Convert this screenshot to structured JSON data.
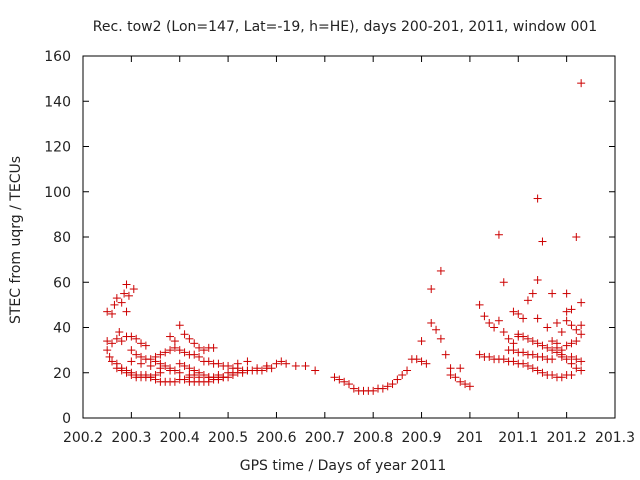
{
  "chart_data": {
    "type": "scatter",
    "title": "Rec. tow2 (Lon=147, Lat=-19, h=HE), days 200-201, 2011, window 001",
    "xlabel": "GPS time / Days of year 2011",
    "ylabel": "STEC from uqrg / TECUs",
    "xlim": [
      200.2,
      201.3
    ],
    "ylim": [
      0,
      160
    ],
    "xticks": [
      200.2,
      200.3,
      200.4,
      200.5,
      200.6,
      200.7,
      200.8,
      200.9,
      201,
      201.1,
      201.2,
      201.3
    ],
    "xtick_labels": [
      "200.2",
      "200.3",
      "200.4",
      "200.5",
      "200.6",
      "200.7",
      "200.8",
      "200.9",
      "201",
      "201.1",
      "201.2",
      "201.3"
    ],
    "yticks": [
      0,
      20,
      40,
      60,
      80,
      100,
      120,
      140,
      160
    ],
    "ytick_labels": [
      "0",
      "20",
      "40",
      "60",
      "80",
      "100",
      "120",
      "140",
      "160"
    ],
    "marker": "+",
    "color": "#cc0000",
    "grid": false,
    "series": [
      {
        "name": "STEC",
        "points": [
          [
            200.25,
            47
          ],
          [
            200.26,
            46
          ],
          [
            200.265,
            50
          ],
          [
            200.27,
            53
          ],
          [
            200.28,
            51
          ],
          [
            200.285,
            55
          ],
          [
            200.29,
            59
          ],
          [
            200.295,
            54
          ],
          [
            200.305,
            57
          ],
          [
            200.29,
            47
          ],
          [
            200.25,
            34
          ],
          [
            200.26,
            33
          ],
          [
            200.27,
            35
          ],
          [
            200.275,
            38
          ],
          [
            200.28,
            34
          ],
          [
            200.29,
            36
          ],
          [
            200.3,
            36
          ],
          [
            200.31,
            35
          ],
          [
            200.32,
            33
          ],
          [
            200.33,
            32
          ],
          [
            200.25,
            30
          ],
          [
            200.255,
            27
          ],
          [
            200.26,
            25
          ],
          [
            200.27,
            24
          ],
          [
            200.28,
            22
          ],
          [
            200.29,
            21
          ],
          [
            200.3,
            20
          ],
          [
            200.31,
            19
          ],
          [
            200.32,
            19
          ],
          [
            200.33,
            19
          ],
          [
            200.34,
            18
          ],
          [
            200.35,
            17
          ],
          [
            200.36,
            16
          ],
          [
            200.37,
            16
          ],
          [
            200.38,
            16
          ],
          [
            200.39,
            16
          ],
          [
            200.4,
            17
          ],
          [
            200.41,
            17
          ],
          [
            200.42,
            18
          ],
          [
            200.43,
            19
          ],
          [
            200.27,
            22
          ],
          [
            200.28,
            21
          ],
          [
            200.29,
            20
          ],
          [
            200.3,
            19
          ],
          [
            200.31,
            18
          ],
          [
            200.32,
            18
          ],
          [
            200.33,
            18
          ],
          [
            200.34,
            18
          ],
          [
            200.35,
            19
          ],
          [
            200.36,
            20
          ],
          [
            200.3,
            30
          ],
          [
            200.31,
            28
          ],
          [
            200.32,
            27
          ],
          [
            200.33,
            26
          ],
          [
            200.34,
            26
          ],
          [
            200.35,
            25
          ],
          [
            200.36,
            24
          ],
          [
            200.37,
            23
          ],
          [
            200.38,
            22
          ],
          [
            200.39,
            21
          ],
          [
            200.3,
            25
          ],
          [
            200.32,
            24
          ],
          [
            200.34,
            23
          ],
          [
            200.36,
            22
          ],
          [
            200.38,
            21
          ],
          [
            200.4,
            20
          ],
          [
            200.42,
            19
          ],
          [
            200.44,
            18
          ],
          [
            200.46,
            18
          ],
          [
            200.48,
            19
          ],
          [
            200.35,
            27
          ],
          [
            200.36,
            28
          ],
          [
            200.37,
            29
          ],
          [
            200.38,
            30
          ],
          [
            200.39,
            31
          ],
          [
            200.4,
            30
          ],
          [
            200.41,
            29
          ],
          [
            200.42,
            28
          ],
          [
            200.43,
            28
          ],
          [
            200.44,
            27
          ],
          [
            200.38,
            36
          ],
          [
            200.39,
            34
          ],
          [
            200.4,
            41
          ],
          [
            200.41,
            37
          ],
          [
            200.42,
            35
          ],
          [
            200.43,
            33
          ],
          [
            200.44,
            31
          ],
          [
            200.45,
            30
          ],
          [
            200.46,
            31
          ],
          [
            200.47,
            31
          ],
          [
            200.4,
            24
          ],
          [
            200.41,
            23
          ],
          [
            200.42,
            22
          ],
          [
            200.43,
            21
          ],
          [
            200.44,
            20
          ],
          [
            200.45,
            19
          ],
          [
            200.46,
            18
          ],
          [
            200.47,
            18
          ],
          [
            200.48,
            18
          ],
          [
            200.49,
            18
          ],
          [
            200.42,
            16
          ],
          [
            200.43,
            16
          ],
          [
            200.44,
            16
          ],
          [
            200.45,
            16
          ],
          [
            200.46,
            16
          ],
          [
            200.47,
            17
          ],
          [
            200.48,
            17
          ],
          [
            200.49,
            18
          ],
          [
            200.5,
            18
          ],
          [
            200.51,
            19
          ],
          [
            200.45,
            25
          ],
          [
            200.46,
            25
          ],
          [
            200.47,
            24
          ],
          [
            200.48,
            24
          ],
          [
            200.49,
            23
          ],
          [
            200.5,
            23
          ],
          [
            200.51,
            22
          ],
          [
            200.52,
            22
          ],
          [
            200.53,
            21
          ],
          [
            200.54,
            21
          ],
          [
            200.5,
            20
          ],
          [
            200.51,
            20
          ],
          [
            200.52,
            20
          ],
          [
            200.53,
            20
          ],
          [
            200.54,
            21
          ],
          [
            200.55,
            21
          ],
          [
            200.56,
            21
          ],
          [
            200.57,
            21
          ],
          [
            200.58,
            22
          ],
          [
            200.59,
            22
          ],
          [
            200.52,
            24
          ],
          [
            200.54,
            25
          ],
          [
            200.56,
            22
          ],
          [
            200.58,
            23
          ],
          [
            200.6,
            24
          ],
          [
            200.61,
            25
          ],
          [
            200.62,
            24
          ],
          [
            200.64,
            23
          ],
          [
            200.66,
            23
          ],
          [
            200.68,
            21
          ],
          [
            200.72,
            18
          ],
          [
            200.73,
            17
          ],
          [
            200.74,
            16
          ],
          [
            200.75,
            15
          ],
          [
            200.76,
            13
          ],
          [
            200.77,
            12
          ],
          [
            200.78,
            12
          ],
          [
            200.79,
            12
          ],
          [
            200.8,
            12
          ],
          [
            200.81,
            13
          ],
          [
            200.82,
            13
          ],
          [
            200.83,
            14
          ],
          [
            200.84,
            15
          ],
          [
            200.85,
            17
          ],
          [
            200.86,
            19
          ],
          [
            200.87,
            21
          ],
          [
            200.88,
            26
          ],
          [
            200.89,
            26
          ],
          [
            200.9,
            25
          ],
          [
            200.91,
            24
          ],
          [
            200.9,
            34
          ],
          [
            200.92,
            42
          ],
          [
            200.93,
            39
          ],
          [
            200.94,
            35
          ],
          [
            200.95,
            28
          ],
          [
            200.96,
            22
          ],
          [
            200.97,
            18
          ],
          [
            200.98,
            16
          ],
          [
            200.99,
            15
          ],
          [
            201.0,
            14
          ],
          [
            200.92,
            57
          ],
          [
            200.94,
            65
          ],
          [
            200.98,
            22
          ],
          [
            200.96,
            19
          ],
          [
            201.02,
            50
          ],
          [
            201.03,
            45
          ],
          [
            201.04,
            42
          ],
          [
            201.05,
            40
          ],
          [
            201.06,
            43
          ],
          [
            201.07,
            38
          ],
          [
            201.08,
            35
          ],
          [
            201.09,
            33
          ],
          [
            201.1,
            36
          ],
          [
            201.11,
            44
          ],
          [
            201.06,
            81
          ],
          [
            201.07,
            60
          ],
          [
            201.09,
            47
          ],
          [
            201.1,
            46
          ],
          [
            201.12,
            52
          ],
          [
            201.13,
            55
          ],
          [
            201.14,
            61
          ],
          [
            201.14,
            97
          ],
          [
            201.15,
            78
          ],
          [
            201.17,
            55
          ],
          [
            201.02,
            28
          ],
          [
            201.03,
            27
          ],
          [
            201.04,
            27
          ],
          [
            201.05,
            26
          ],
          [
            201.06,
            26
          ],
          [
            201.07,
            26
          ],
          [
            201.08,
            25
          ],
          [
            201.09,
            25
          ],
          [
            201.1,
            24
          ],
          [
            201.11,
            24
          ],
          [
            201.12,
            23
          ],
          [
            201.13,
            22
          ],
          [
            201.14,
            21
          ],
          [
            201.15,
            20
          ],
          [
            201.16,
            19
          ],
          [
            201.17,
            19
          ],
          [
            201.18,
            18
          ],
          [
            201.19,
            18
          ],
          [
            201.2,
            19
          ],
          [
            201.21,
            19
          ],
          [
            201.08,
            30
          ],
          [
            201.09,
            30
          ],
          [
            201.1,
            29
          ],
          [
            201.11,
            29
          ],
          [
            201.12,
            28
          ],
          [
            201.13,
            28
          ],
          [
            201.14,
            27
          ],
          [
            201.15,
            27
          ],
          [
            201.16,
            26
          ],
          [
            201.17,
            26
          ],
          [
            201.1,
            37
          ],
          [
            201.11,
            36
          ],
          [
            201.12,
            35
          ],
          [
            201.13,
            34
          ],
          [
            201.14,
            33
          ],
          [
            201.15,
            32
          ],
          [
            201.16,
            31
          ],
          [
            201.17,
            30
          ],
          [
            201.18,
            29
          ],
          [
            201.19,
            28
          ],
          [
            201.14,
            44
          ],
          [
            201.16,
            40
          ],
          [
            201.18,
            42
          ],
          [
            201.19,
            38
          ],
          [
            201.2,
            43
          ],
          [
            201.21,
            41
          ],
          [
            201.22,
            39
          ],
          [
            201.23,
            37
          ],
          [
            201.2,
            47
          ],
          [
            201.23,
            41
          ],
          [
            201.2,
            55
          ],
          [
            201.21,
            48
          ],
          [
            201.22,
            80
          ],
          [
            201.23,
            51
          ],
          [
            201.23,
            148
          ],
          [
            201.22,
            34
          ],
          [
            201.21,
            33
          ],
          [
            201.2,
            32
          ],
          [
            201.19,
            30
          ],
          [
            201.18,
            33
          ],
          [
            201.21,
            27
          ],
          [
            201.22,
            26
          ],
          [
            201.23,
            25
          ],
          [
            201.22,
            22
          ],
          [
            201.23,
            21
          ],
          [
            201.21,
            24
          ],
          [
            201.2,
            26
          ],
          [
            201.19,
            27
          ],
          [
            201.18,
            31
          ],
          [
            201.17,
            34
          ]
        ]
      }
    ]
  }
}
